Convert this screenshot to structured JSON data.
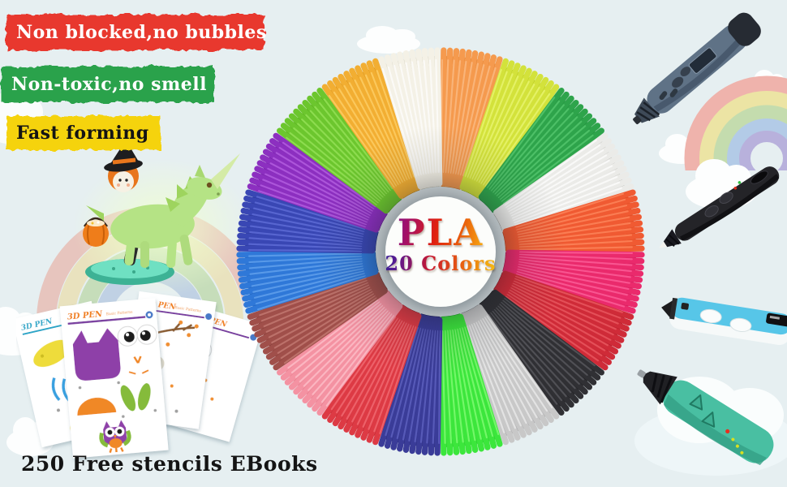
{
  "page": {
    "background": "#e6eff1"
  },
  "badges": [
    {
      "label": "Non blocked,no bubbles",
      "bg": "#e8392d",
      "fg": "#ffffff"
    },
    {
      "label": "Non-toxic,no smell",
      "bg": "#2ca24b",
      "fg": "#ffffff"
    },
    {
      "label": "Fast forming",
      "bg": "#f5d30f",
      "fg": "#141414"
    }
  ],
  "wheel": {
    "title": "PLA",
    "subtitle": "20 Colors",
    "center_bg": "#fcfdfb",
    "colors": [
      {
        "name": "Orange",
        "hex": "#f59a4e",
        "light": "#fbc08c",
        "dark": "#c86f1e"
      },
      {
        "name": "Yellow Green",
        "hex": "#d3e23b",
        "light": "#ecf878",
        "dark": "#9fb414"
      },
      {
        "name": "Green",
        "hex": "#2ea44b",
        "light": "#5bcc74",
        "dark": "#177832"
      },
      {
        "name": "Transparent White",
        "hex": "#ebebe8",
        "light": "#ffffff",
        "dark": "#a5a5a0"
      },
      {
        "name": "Orange Red",
        "hex": "#f05a32",
        "light": "#ff8d62",
        "dark": "#b83a12"
      },
      {
        "name": "Rose Red",
        "hex": "#ea2a6c",
        "light": "#ff66a0",
        "dark": "#ae0f4a"
      },
      {
        "name": "Dark Red",
        "hex": "#cf2b38",
        "light": "#ee5f66",
        "dark": "#8f1520"
      },
      {
        "name": "Black",
        "hex": "#303034",
        "light": "#5e5e64",
        "dark": "#0d0d0f"
      },
      {
        "name": "Silver",
        "hex": "#c8c8c8",
        "light": "#efefef",
        "dark": "#8c8c90"
      },
      {
        "name": "Fluorescent Green",
        "hex": "#3ce63c",
        "light": "#8cff7c",
        "dark": "#16a81f"
      },
      {
        "name": "Dark Blue",
        "hex": "#3a3c98",
        "light": "#6467c6",
        "dark": "#1e2060"
      },
      {
        "name": "Red",
        "hex": "#dd3a44",
        "light": "#f4727a",
        "dark": "#9c1d26"
      },
      {
        "name": "Pink",
        "hex": "#f492a2",
        "light": "#ffc6cf",
        "dark": "#cc5f6c"
      },
      {
        "name": "Brown",
        "hex": "#a04f4a",
        "light": "#c88078",
        "dark": "#6a2f2a"
      },
      {
        "name": "Sky Blue",
        "hex": "#2f78d8",
        "light": "#6aa8f0",
        "dark": "#174f9e"
      },
      {
        "name": "Blue",
        "hex": "#3947b4",
        "light": "#6573dc",
        "dark": "#1d2878"
      },
      {
        "name": "Purple",
        "hex": "#8c2fc0",
        "light": "#ba66e6",
        "dark": "#5c1486"
      },
      {
        "name": "Grass Green",
        "hex": "#6cc62e",
        "light": "#9ce65e",
        "dark": "#3f8c10"
      },
      {
        "name": "Gold",
        "hex": "#f2ae32",
        "light": "#ffd36e",
        "dark": "#c07c0c"
      },
      {
        "name": "White",
        "hex": "#f4f1e6",
        "light": "#ffffff",
        "dark": "#c0bdac"
      }
    ]
  },
  "stencils": {
    "sheet_title": "3D PEN",
    "sheet_subtitle": "Basic Patterns",
    "caption": "250 Free stencils EBooks"
  },
  "figurines": {
    "unicorn_color": "#b5e385",
    "base_color": "#4cc9a8",
    "pumpkin_color": "#ef7d1a"
  },
  "pens": [
    {
      "name": "slate-blue-pen",
      "body": "#5f7286"
    },
    {
      "name": "black-pen",
      "body": "#242428"
    },
    {
      "name": "sky-blue-pen",
      "body": "#57c6e8"
    },
    {
      "name": "teal-pen",
      "body": "#49bfa2"
    }
  ],
  "decor": {
    "rainbow_pastel": [
      "#efb3ac",
      "#ece4a4",
      "#c4dcae",
      "#b3cbe7",
      "#b8b1dc"
    ],
    "rainbow_warm": [
      "#e4837b",
      "#eec468",
      "#a6cc7e"
    ],
    "cloud_color": "#fdfefe"
  }
}
